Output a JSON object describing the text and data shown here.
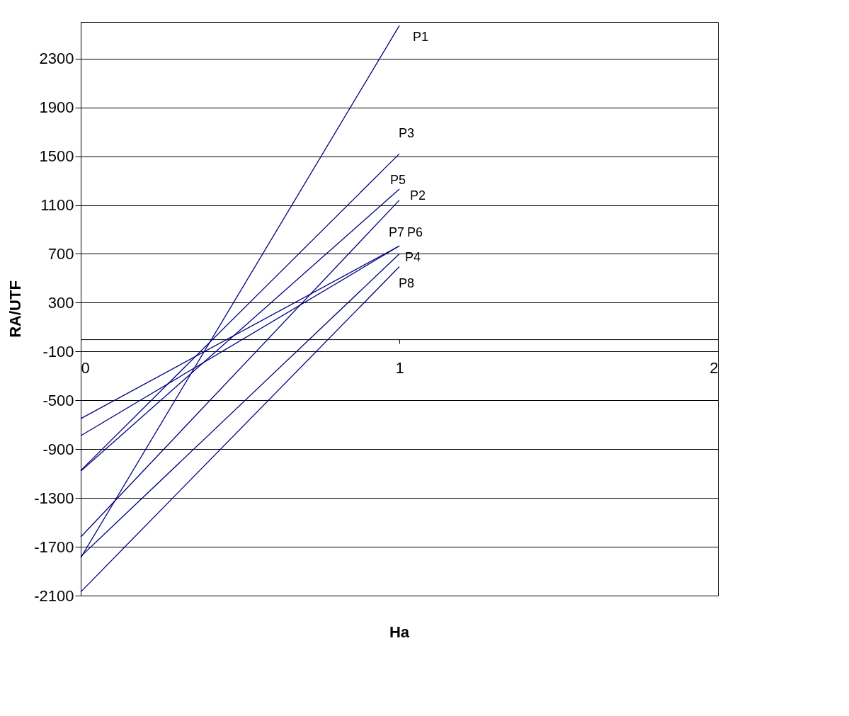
{
  "chart_data": {
    "type": "line",
    "xlabel": "Ha",
    "ylabel": "RA/UTF",
    "x": [
      0,
      1
    ],
    "series": [
      {
        "name": "P1",
        "color": "#000080",
        "values": [
          -1790,
          2570
        ]
      },
      {
        "name": "P2",
        "color": "#000080",
        "values": [
          -1620,
          1140
        ]
      },
      {
        "name": "P3",
        "color": "#000080",
        "values": [
          -1075,
          1520
        ]
      },
      {
        "name": "P4",
        "color": "#000080",
        "values": [
          -1780,
          700
        ]
      },
      {
        "name": "P5",
        "color": "#000080",
        "values": [
          -1080,
          1230
        ]
      },
      {
        "name": "P6",
        "color": "#000080",
        "values": [
          -650,
          765
        ]
      },
      {
        "name": "P7",
        "color": "#000080",
        "values": [
          -790,
          765
        ]
      },
      {
        "name": "P8",
        "color": "#000080",
        "values": [
          -2070,
          595
        ]
      }
    ],
    "xlim": [
      0,
      2
    ],
    "xticks": [
      0,
      1,
      2
    ],
    "ylim": [
      -2100,
      2600
    ],
    "yticks": [
      -2100,
      -1700,
      -1300,
      -900,
      -500,
      -100,
      300,
      700,
      1100,
      1500,
      1900,
      2300
    ],
    "grid": "y",
    "marker": "none",
    "line_style": "solid"
  }
}
